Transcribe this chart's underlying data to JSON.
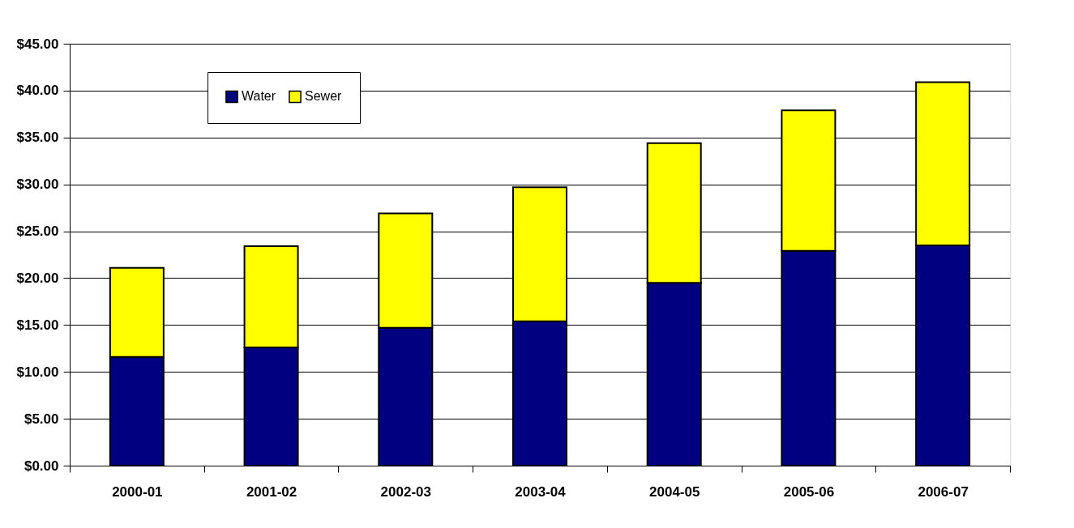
{
  "chart_data": {
    "type": "bar",
    "stacked": true,
    "categories": [
      "2000-01",
      "2001-02",
      "2002-03",
      "2003-04",
      "2004-05",
      "2005-06",
      "2006-07"
    ],
    "series": [
      {
        "name": "Water",
        "color": "#000080",
        "values": [
          11.6,
          12.6,
          14.7,
          15.4,
          19.5,
          22.9,
          23.5
        ]
      },
      {
        "name": "Sewer",
        "color": "#ffff00",
        "values": [
          9.5,
          10.8,
          12.2,
          14.3,
          14.9,
          15.0,
          17.4
        ]
      }
    ],
    "ylim": [
      0,
      45
    ],
    "yticks": [
      {
        "value": 0,
        "label": "$0.00"
      },
      {
        "value": 5,
        "label": "$5.00"
      },
      {
        "value": 10,
        "label": "$10.00"
      },
      {
        "value": 15,
        "label": "$15.00"
      },
      {
        "value": 20,
        "label": "$20.00"
      },
      {
        "value": 25,
        "label": "$25.00"
      },
      {
        "value": 30,
        "label": "$30.00"
      },
      {
        "value": 35,
        "label": "$35.00"
      },
      {
        "value": 40,
        "label": "$40.00"
      },
      {
        "value": 45,
        "label": "$45.00"
      }
    ],
    "grid": "y",
    "legend": "top left"
  }
}
